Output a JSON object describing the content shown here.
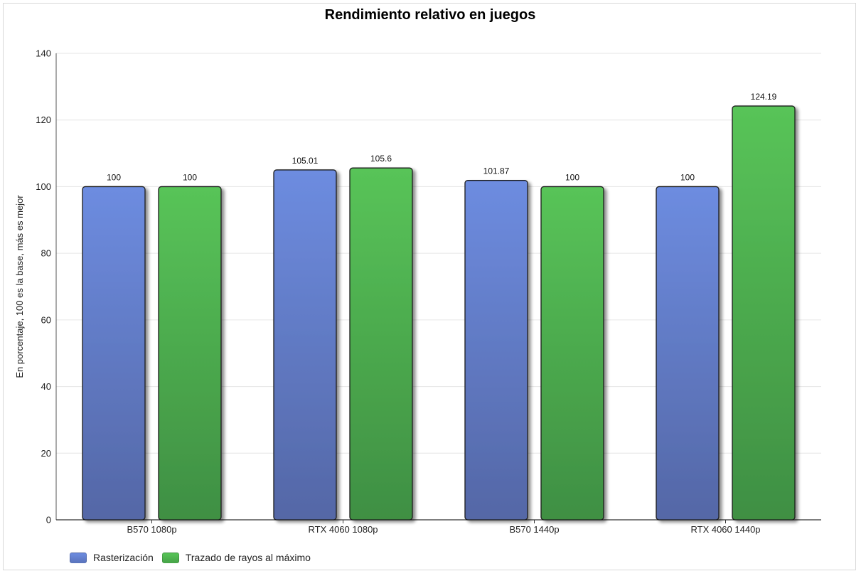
{
  "chart_data": {
    "type": "bar",
    "title": "Rendimiento relativo en juegos",
    "xlabel": "",
    "ylabel": "En porcentaje, 100 es la base, más es mejor",
    "ylim": [
      0,
      140
    ],
    "yticks": [
      0,
      20,
      40,
      60,
      80,
      100,
      120,
      140
    ],
    "grid": true,
    "legend_position": "bottom-left",
    "categories": [
      "B570 1080p",
      "RTX 4060 1080p",
      "B570 1440p",
      "RTX 4060 1440p"
    ],
    "series": [
      {
        "name": "Rasterización",
        "color": "#6a89dd",
        "values": [
          100,
          105.01,
          101.87,
          100
        ],
        "labels": [
          "100",
          "105.01",
          "101.87",
          "100"
        ]
      },
      {
        "name": "Trazado de rayos al máximo",
        "color": "#56c156",
        "values": [
          100,
          105.6,
          100,
          124.19
        ],
        "labels": [
          "100",
          "105.6",
          "100",
          "124.19"
        ]
      }
    ]
  }
}
